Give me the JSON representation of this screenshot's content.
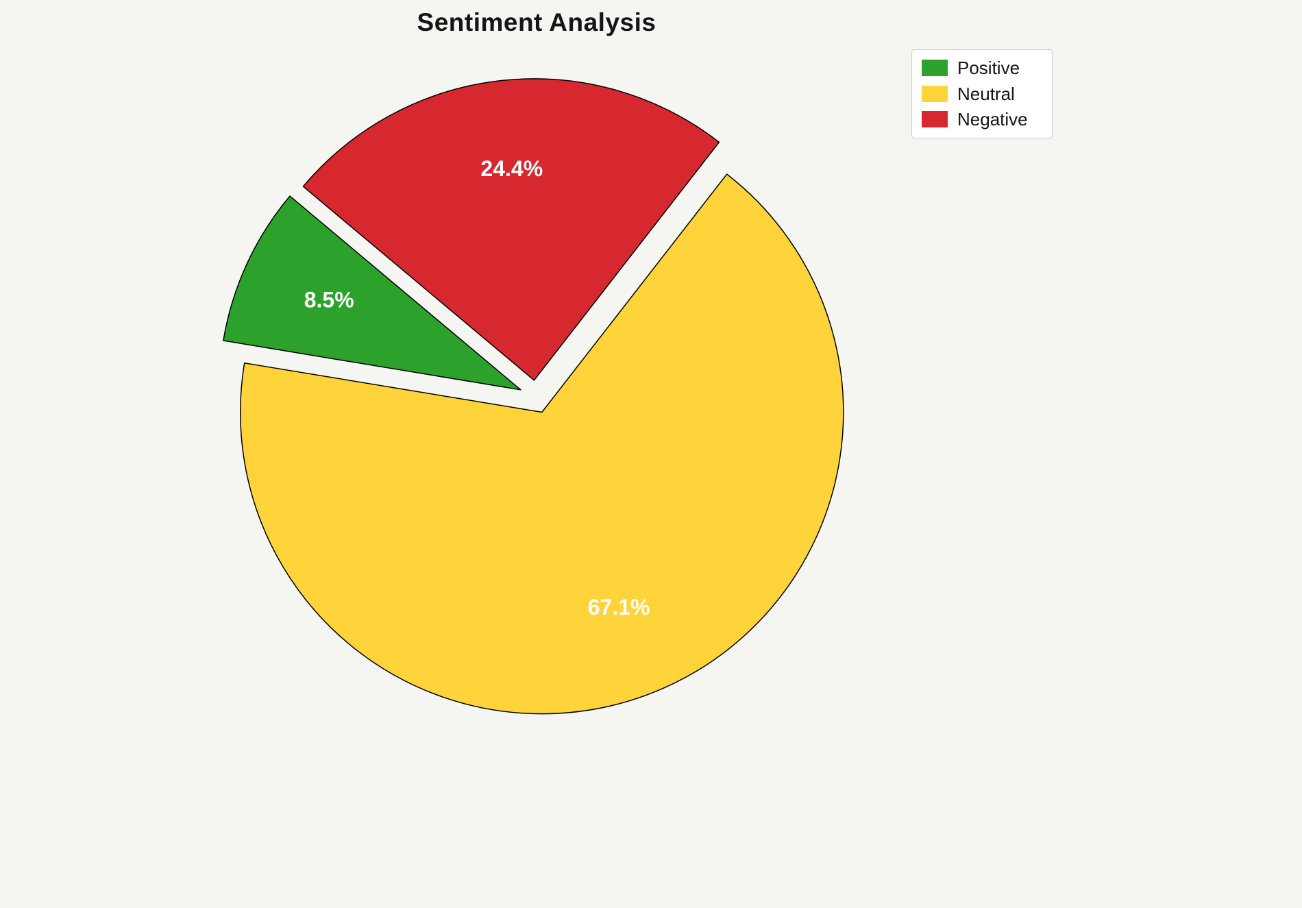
{
  "figure": {
    "background": "#f5f5f2"
  },
  "chart_data": {
    "type": "pie",
    "title": "Sentiment Analysis",
    "labels": [
      "Positive",
      "Neutral",
      "Negative"
    ],
    "values": [
      8.5,
      67.1,
      24.4
    ],
    "value_labels": [
      "8.5%",
      "67.1%",
      "24.4%"
    ],
    "colors": [
      "#2CA22C",
      "#FFD43B",
      "#D7282F"
    ],
    "start_angle": 140,
    "counterclockwise": true,
    "explode": [
      0.055,
      0.055,
      0.055
    ],
    "pct_distance": 0.7,
    "slice_edge_color": "#000000",
    "percent_label_color": "#ffffff",
    "legend": {
      "position": "upper right",
      "entries": [
        "Positive",
        "Neutral",
        "Negative"
      ]
    }
  }
}
